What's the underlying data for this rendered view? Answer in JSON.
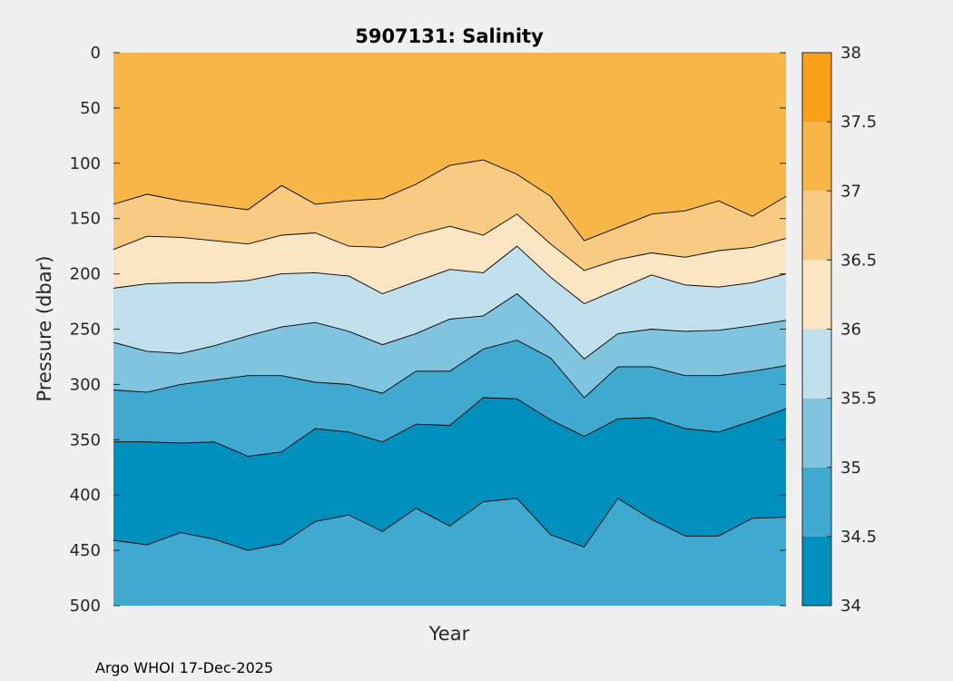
{
  "chart_data": {
    "type": "contour",
    "title": "5907131:  Salinity",
    "xlabel": "Year",
    "ylabel": "Pressure (dbar)",
    "ylim": [
      0,
      500
    ],
    "y_direction": "reverse",
    "yticks": [
      "0",
      "50",
      "100",
      "150",
      "200",
      "250",
      "300",
      "350",
      "400",
      "450",
      "500"
    ],
    "colorbar": {
      "range": [
        34,
        38
      ],
      "ticks": [
        "34",
        "34.5",
        "35",
        "35.5",
        "36",
        "36.5",
        "37",
        "37.5",
        "38"
      ],
      "levels": [
        34,
        34.5,
        35,
        35.5,
        36,
        36.5,
        37,
        37.5,
        38
      ],
      "colors": [
        "#0090BE",
        "#40A9CF",
        "#80C4DF",
        "#BFE0EC",
        "#FBE5C3",
        "#F9CA81",
        "#F8B548",
        "#F9A016"
      ]
    },
    "contour_x_fraction": [
      0,
      0.05,
      0.1,
      0.15,
      0.2,
      0.25,
      0.3,
      0.35,
      0.4,
      0.45,
      0.5,
      0.55,
      0.6,
      0.65,
      0.7,
      0.75,
      0.8,
      0.85,
      0.9,
      0.95,
      1
    ],
    "contours": [
      {
        "level": 37,
        "fill_below": "#F8B548",
        "fill_above": "#F9CA81",
        "pressure": [
          137,
          128,
          134,
          138,
          142,
          120,
          137,
          134,
          132,
          119,
          102,
          97,
          110,
          130,
          170,
          158,
          146,
          143,
          134,
          148,
          130
        ]
      },
      {
        "level": 36.5,
        "fill_below": "#F9CA81",
        "fill_above": "#FBE5C3",
        "pressure": [
          178,
          166,
          167,
          170,
          173,
          165,
          163,
          175,
          176,
          165,
          157,
          165,
          146,
          173,
          197,
          187,
          181,
          185,
          179,
          176,
          168
        ]
      },
      {
        "level": 36,
        "fill_below": "#FBE5C3",
        "fill_above": "#BFE0EC",
        "pressure": [
          213,
          209,
          208,
          208,
          206,
          200,
          199,
          202,
          218,
          207,
          196,
          199,
          175,
          203,
          227,
          214,
          201,
          210,
          212,
          208,
          200
        ]
      },
      {
        "level": 35.5,
        "fill_below": "#BFE0EC",
        "fill_above": "#80C4DF",
        "pressure": [
          262,
          270,
          272,
          265,
          256,
          248,
          244,
          252,
          264,
          254,
          241,
          238,
          218,
          245,
          277,
          254,
          250,
          252,
          251,
          247,
          242
        ]
      },
      {
        "level": 35,
        "fill_below": "#80C4DF",
        "fill_above": "#40A9CF",
        "pressure": [
          305,
          307,
          300,
          296,
          292,
          292,
          298,
          300,
          308,
          288,
          288,
          268,
          260,
          276,
          312,
          284,
          284,
          292,
          292,
          288,
          283
        ]
      },
      {
        "level": 34.5,
        "fill_below": "#40A9CF",
        "fill_above": "#0090BE",
        "pressure": [
          352,
          352,
          353,
          352,
          365,
          361,
          340,
          343,
          352,
          336,
          337,
          312,
          313,
          332,
          347,
          331,
          330,
          340,
          343,
          333,
          322
        ]
      },
      {
        "level": 34.5,
        "fill_below": "#40A9CF",
        "fill_above": "#40A9CF",
        "pressure": [
          441,
          445,
          434,
          440,
          450,
          444,
          424,
          418,
          433,
          412,
          428,
          406,
          403,
          436,
          447,
          403,
          422,
          437,
          437,
          421,
          420
        ]
      }
    ]
  },
  "footer": {
    "text": "Argo WHOI 17-Dec-2025"
  }
}
